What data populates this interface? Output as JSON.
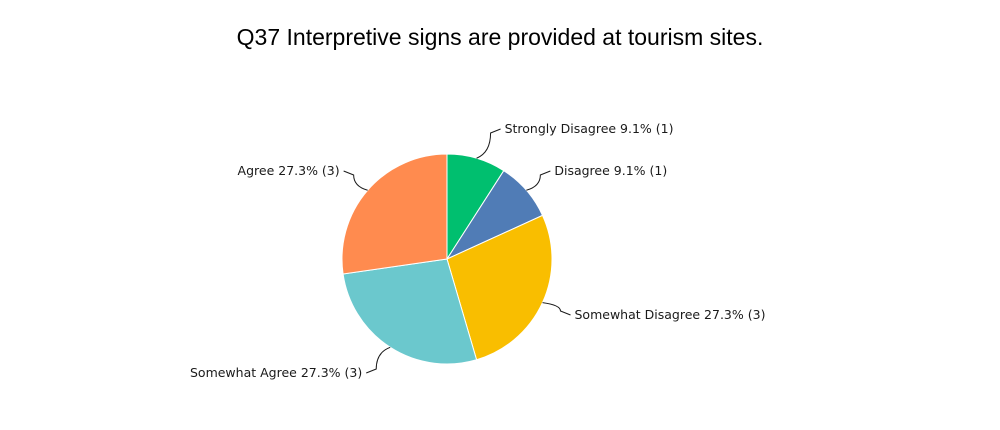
{
  "chart_data": {
    "type": "pie",
    "title": "Q37 Interpretive signs are provided at tourism sites.",
    "slices": [
      {
        "name": "Strongly Disagree",
        "percent": 9.1,
        "count": 1,
        "color": "#00BF6F",
        "label": "Strongly Disagree 9.1% (1)"
      },
      {
        "name": "Disagree",
        "percent": 9.1,
        "count": 1,
        "color": "#507CB6",
        "label": "Disagree 9.1% (1)"
      },
      {
        "name": "Somewhat Disagree",
        "percent": 27.3,
        "count": 3,
        "color": "#F9BE00",
        "label": "Somewhat Disagree 27.3% (3)"
      },
      {
        "name": "Somewhat Agree",
        "percent": 27.3,
        "count": 3,
        "color": "#6BC8CD",
        "label": "Somewhat Agree 27.3% (3)"
      },
      {
        "name": "Agree",
        "percent": 27.3,
        "count": 3,
        "color": "#FF8B4F",
        "label": "Agree 27.3% (3)"
      }
    ]
  }
}
